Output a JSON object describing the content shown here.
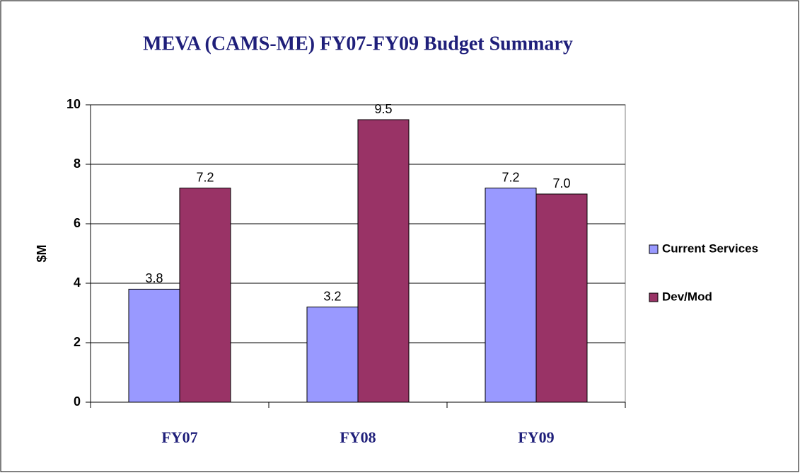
{
  "chart_data": {
    "type": "bar",
    "title": "MEVA (CAMS-ME) FY07-FY09 Budget Summary",
    "y_label": "$M",
    "categories": [
      "FY07",
      "FY08",
      "FY09"
    ],
    "series": [
      {
        "name": "Current Services",
        "color": "#9999ff",
        "values": [
          3.8,
          3.2,
          7.2
        ]
      },
      {
        "name": "Dev/Mod",
        "color": "#993366",
        "values": [
          7.2,
          9.5,
          7.0
        ],
        "value_labels": [
          "7.2",
          "9.5",
          "7.0"
        ]
      }
    ],
    "ylim": [
      0,
      10
    ],
    "yticks": [
      0,
      2,
      4,
      6,
      8,
      10
    ],
    "grid": true,
    "legend": "right"
  }
}
